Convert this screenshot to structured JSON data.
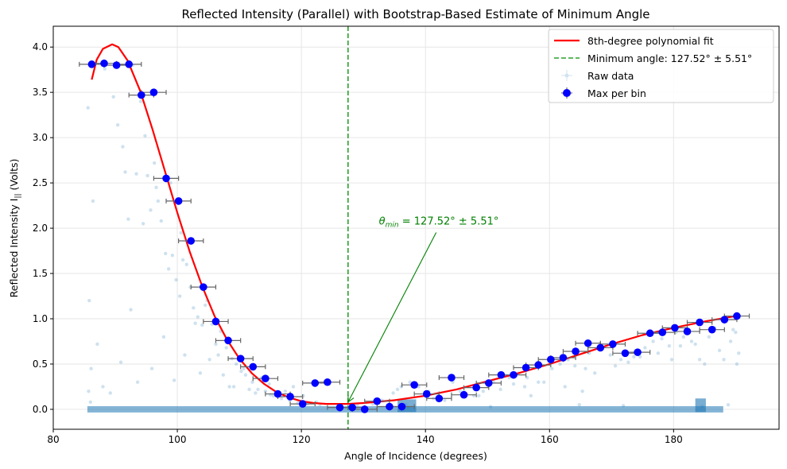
{
  "chart_data": {
    "type": "scatter",
    "title": "Reflected Intensity (Parallel) with Bootstrap-Based Estimate of Minimum Angle",
    "xlabel": "Angle of Incidence (degrees)",
    "ylabel_main": "Reflected Intensity I",
    "ylabel_sub": "||",
    "ylabel_unit": " (Volts)",
    "xlim": [
      80,
      197
    ],
    "ylim": [
      -0.22,
      4.23
    ],
    "xticks": [
      80,
      100,
      120,
      140,
      160,
      180
    ],
    "xtick_labels": [
      "80",
      "100",
      "120",
      "140",
      "160",
      "180"
    ],
    "yticks": [
      0.0,
      0.5,
      1.0,
      1.5,
      2.0,
      2.5,
      3.0,
      3.5,
      4.0
    ],
    "ytick_labels": [
      "0.0",
      "0.5",
      "1.0",
      "1.5",
      "2.0",
      "2.5",
      "3.0",
      "3.5",
      "4.0"
    ],
    "grid": true,
    "legend_position": "top-right",
    "legend": [
      {
        "label": "8th-degree polynomial fit",
        "kind": "line",
        "color": "#ff0000"
      },
      {
        "label": "Minimum angle: 127.52° ± 5.51°",
        "kind": "dashed",
        "color": "#2ca02c"
      },
      {
        "label": "Raw data",
        "kind": "faint-marker",
        "color": "#1f77b4"
      },
      {
        "label": "Max per bin",
        "kind": "errorbar-marker",
        "color": "#0000ff"
      }
    ],
    "min_angle": 127.52,
    "min_angle_err": 5.51,
    "annotation": {
      "theta": "θ",
      "sub": "min",
      "rest": " = 127.52° ± 5.51°",
      "text_at": [
        132.5,
        2.04
      ],
      "arrow_to": [
        127.52,
        0.08
      ]
    },
    "series": [
      {
        "name": "8th-degree polynomial fit",
        "kind": "fit",
        "color": "#ff0000",
        "points": [
          [
            86.2,
            3.64
          ],
          [
            87.0,
            3.86
          ],
          [
            88.0,
            3.98
          ],
          [
            89.5,
            4.03
          ],
          [
            90.5,
            4.0
          ],
          [
            92.0,
            3.85
          ],
          [
            94.0,
            3.52
          ],
          [
            96.0,
            3.09
          ],
          [
            98.0,
            2.63
          ],
          [
            100.0,
            2.17
          ],
          [
            102.0,
            1.74
          ],
          [
            104.0,
            1.36
          ],
          [
            106.0,
            1.03
          ],
          [
            108.0,
            0.77
          ],
          [
            110.0,
            0.56
          ],
          [
            112.0,
            0.4
          ],
          [
            114.0,
            0.28
          ],
          [
            116.0,
            0.19
          ],
          [
            118.0,
            0.13
          ],
          [
            120.0,
            0.09
          ],
          [
            122.0,
            0.07
          ],
          [
            124.0,
            0.06
          ],
          [
            127.5,
            0.06
          ],
          [
            130.0,
            0.07
          ],
          [
            135.0,
            0.1
          ],
          [
            140.0,
            0.15
          ],
          [
            145.0,
            0.22
          ],
          [
            150.0,
            0.31
          ],
          [
            155.0,
            0.4
          ],
          [
            160.0,
            0.5
          ],
          [
            165.0,
            0.61
          ],
          [
            170.0,
            0.72
          ],
          [
            175.0,
            0.82
          ],
          [
            180.0,
            0.9
          ],
          [
            185.0,
            0.97
          ],
          [
            190.0,
            1.03
          ]
        ]
      },
      {
        "name": "Max per bin",
        "kind": "errorbar",
        "color": "#0000ff",
        "xerr": 2,
        "x": [
          86.2,
          88.2,
          90.2,
          92.2,
          94.2,
          96.2,
          98.2,
          100.2,
          102.2,
          104.2,
          106.2,
          108.2,
          110.2,
          112.2,
          114.2,
          116.2,
          118.2,
          120.2,
          122.2,
          124.2,
          126.2,
          128.2,
          130.2,
          132.2,
          134.2,
          136.2,
          138.2,
          140.2,
          142.2,
          144.2,
          146.2,
          148.2,
          150.2,
          152.2,
          154.2,
          156.2,
          158.2,
          160.2,
          162.2,
          164.2,
          166.2,
          168.2,
          170.2,
          172.2,
          174.2,
          176.2,
          178.2,
          180.2,
          182.2,
          184.2,
          186.2,
          188.2,
          190.2
        ],
        "y": [
          3.81,
          3.82,
          3.8,
          3.81,
          3.47,
          3.5,
          2.55,
          2.3,
          1.86,
          1.35,
          0.97,
          0.76,
          0.56,
          0.47,
          0.34,
          0.17,
          0.14,
          0.06,
          0.29,
          0.3,
          0.02,
          0.02,
          0.0,
          0.09,
          0.03,
          0.03,
          0.27,
          0.17,
          0.12,
          0.35,
          0.16,
          0.24,
          0.29,
          0.38,
          0.38,
          0.46,
          0.49,
          0.55,
          0.57,
          0.64,
          0.73,
          0.68,
          0.72,
          0.62,
          0.63,
          0.84,
          0.85,
          0.9,
          0.86,
          0.96,
          0.88,
          0.99,
          1.03
        ]
      },
      {
        "name": "Raw data",
        "kind": "raw",
        "color": "#1f77b4",
        "x": [
          85.6,
          85.8,
          86.4,
          87.1,
          88.3,
          89.7,
          90.4,
          91.2,
          91.6,
          92.1,
          92.8,
          93.4,
          94.1,
          94.8,
          95.2,
          95.7,
          96.3,
          96.9,
          97.4,
          98.1,
          98.6,
          99.2,
          99.8,
          100.4,
          100.9,
          101.5,
          102.1,
          102.6,
          103.3,
          104.0,
          104.8,
          105.6,
          106.2,
          107.0,
          107.9,
          108.8,
          109.5,
          110.3,
          111.0,
          112.1,
          113.0,
          114.2,
          115.5,
          116.8,
          118.1,
          119.4,
          121.0,
          123.0,
          85.7,
          86.1,
          88.0,
          90.9,
          93.6,
          95.9,
          97.8,
          99.5,
          101.2,
          103.7,
          105.2,
          107.4,
          109.1,
          111.6,
          113.6,
          115.0,
          117.4,
          120.3,
          122.4,
          86.0,
          89.2,
          92.5,
          94.5,
          96.6,
          98.9,
          100.6,
          102.9,
          104.5,
          106.6,
          108.4,
          110.7,
          112.6,
          114.8,
          118.7,
          126.0,
          129.0,
          131.5,
          133.0,
          134.8,
          135.5,
          136.1,
          136.8,
          137.5,
          138.9,
          140.5,
          142.0,
          144.4,
          146.2,
          147.8,
          149.3,
          151.0,
          153.5,
          155.0,
          156.0,
          156.4,
          158.2,
          160.4,
          161.7,
          163.0,
          164.1,
          165.3,
          166.4,
          168.2,
          169.8,
          171.5,
          173.6,
          175.4,
          176.7,
          178.1,
          179.3,
          180.4,
          181.6,
          182.9,
          184.2,
          185.0,
          186.6,
          188.1,
          189.2,
          190.0,
          190.5,
          141.3,
          143.1,
          145.6,
          148.6,
          152.1,
          154.2,
          157.0,
          159.1,
          162.5,
          165.8,
          167.3,
          170.6,
          172.7,
          174.6,
          177.5,
          179.7,
          181.1,
          183.5,
          185.7,
          187.4,
          189.6,
          190.2,
          137.2,
          150.5,
          164.8,
          171.9,
          184.6,
          188.8
        ],
        "y": [
          3.33,
          1.2,
          2.3,
          0.72,
          3.76,
          3.45,
          3.14,
          2.9,
          2.62,
          2.1,
          3.8,
          2.6,
          3.4,
          3.02,
          2.58,
          2.2,
          2.72,
          2.3,
          2.08,
          1.72,
          1.55,
          1.7,
          1.43,
          1.25,
          1.65,
          1.6,
          1.35,
          1.12,
          1.02,
          0.93,
          1.2,
          0.94,
          0.72,
          0.86,
          0.68,
          0.56,
          0.5,
          0.42,
          0.38,
          0.3,
          0.22,
          0.2,
          0.15,
          0.12,
          0.1,
          0.07,
          0.06,
          0.05,
          0.2,
          0.45,
          0.25,
          0.52,
          0.3,
          0.45,
          0.8,
          0.32,
          0.6,
          0.4,
          0.55,
          0.38,
          0.25,
          0.22,
          0.35,
          0.16,
          0.2,
          0.15,
          0.08,
          0.08,
          0.18,
          1.1,
          2.05,
          2.45,
          2.5,
          1.95,
          0.95,
          1.15,
          0.6,
          0.25,
          0.45,
          0.18,
          0.28,
          0.25,
          0.03,
          0.05,
          0.06,
          0.1,
          0.18,
          0.22,
          0.25,
          0.05,
          0.3,
          0.25,
          0.2,
          0.1,
          0.3,
          0.2,
          0.15,
          0.2,
          0.3,
          0.35,
          0.4,
          0.25,
          0.35,
          0.3,
          0.45,
          0.5,
          0.55,
          0.48,
          0.2,
          0.62,
          0.66,
          0.6,
          0.55,
          0.58,
          0.68,
          0.75,
          0.78,
          0.7,
          0.85,
          0.8,
          0.75,
          0.55,
          0.5,
          0.9,
          0.55,
          0.75,
          0.85,
          0.62,
          0.12,
          0.1,
          0.2,
          0.15,
          0.22,
          0.28,
          0.15,
          0.3,
          0.25,
          0.45,
          0.4,
          0.48,
          0.52,
          0.58,
          0.62,
          0.55,
          0.7,
          0.72,
          0.8,
          0.65,
          0.88,
          0.5,
          0.02,
          0.03,
          0.05,
          0.04,
          0.03,
          0.05
        ]
      }
    ]
  }
}
